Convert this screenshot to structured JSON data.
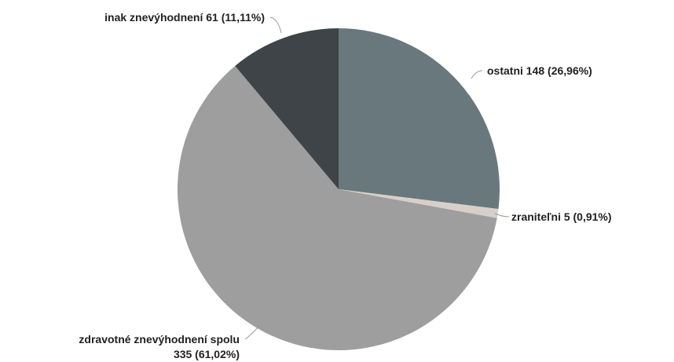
{
  "chart_data": {
    "type": "pie",
    "title": "",
    "slices": [
      {
        "name": "ostatni",
        "value": 148,
        "percent": "26,96%",
        "label": "ostatni 148 (26,96%)",
        "color": "#69787c"
      },
      {
        "name": "zraniteľni",
        "value": 5,
        "percent": "0,91%",
        "label": "zraniteľni 5 (0,91%)",
        "color": "#d8cfc9"
      },
      {
        "name": "zdravotné znevýhodnení spolu",
        "value": 335,
        "percent": "61,02%",
        "label_line1": "zdravotné znevýhodnení spolu",
        "label_line2": "335 (61,02%)",
        "color": "#9e9e9e"
      },
      {
        "name": "inak znevýhodnení",
        "value": 61,
        "percent": "11,11%",
        "label": "inak znevýhodnení 61 (11,11%)",
        "color": "#3e4447"
      }
    ]
  }
}
